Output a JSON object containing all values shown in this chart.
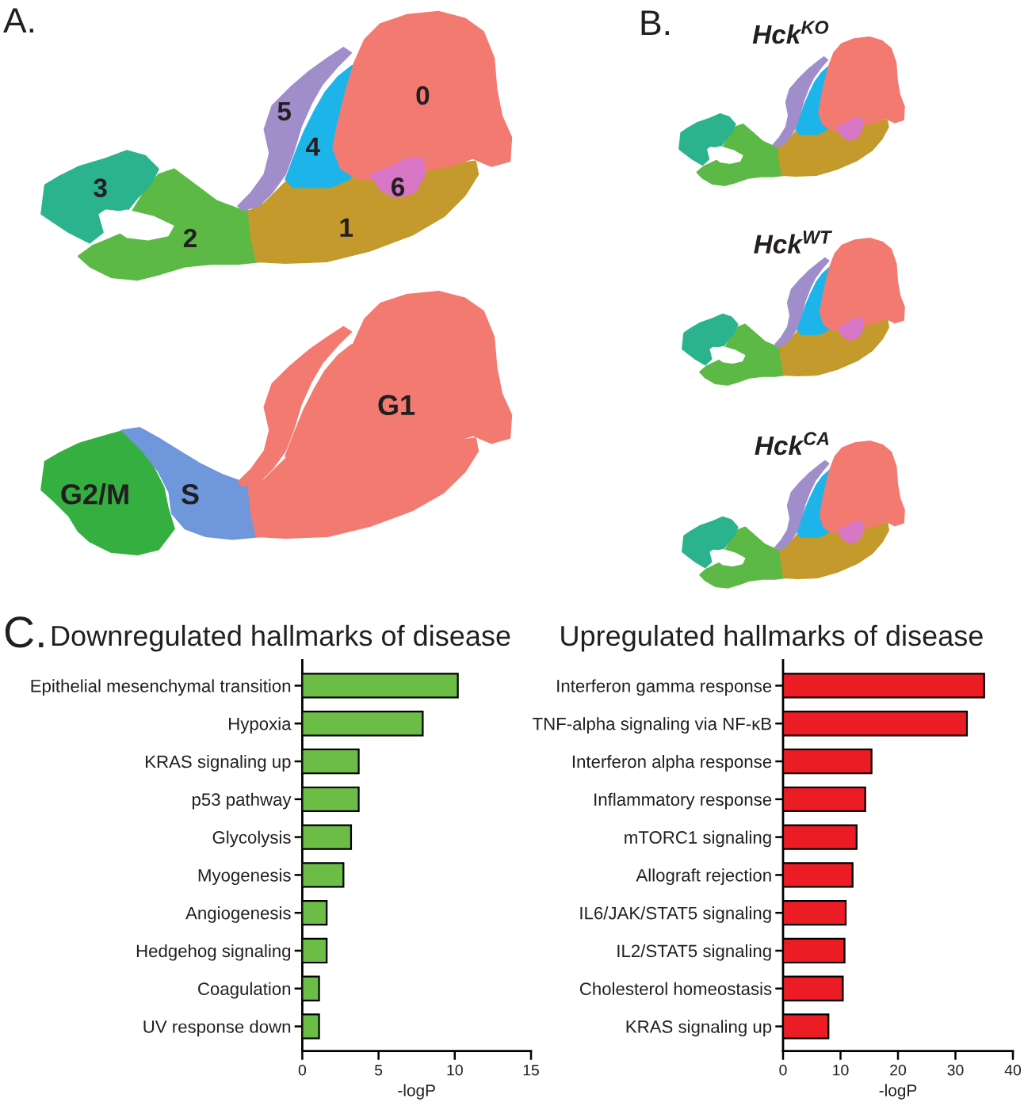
{
  "chart_data": [
    {
      "type": "other",
      "annotations": [
        "A.",
        "0",
        "1",
        "2",
        "3",
        "4",
        "5",
        "6"
      ]
    },
    {
      "type": "other",
      "annotations": [
        "G1",
        "G2/M",
        "S"
      ]
    },
    {
      "type": "other",
      "title": "Hck$^{KO}$",
      "annotations": [
        "B."
      ]
    },
    {
      "type": "other",
      "title": "Hck$^{WT}$"
    },
    {
      "type": "other",
      "title": "Hck$^{CA}$"
    },
    {
      "type": "bar",
      "orientation": "horizontal",
      "title": "Downregulated hallmarks of disease",
      "xlabel": "-logP",
      "categories": [
        "Epithelial mesenchymal transition",
        "Hypoxia",
        "KRAS signaling up",
        "p53 pathway",
        "Glycolysis",
        "Myogenesis",
        "Angiogenesis",
        "Hedgehog signaling",
        "Coagulation",
        "UV response down"
      ],
      "values": [
        10.2,
        7.9,
        3.7,
        3.7,
        3.2,
        2.7,
        1.6,
        1.6,
        1.1,
        1.1
      ],
      "color": "#6cbd45",
      "xlim": [
        0,
        15
      ],
      "xticks": [
        0,
        5,
        10,
        15
      ],
      "annotations": [
        "C."
      ]
    },
    {
      "type": "bar",
      "orientation": "horizontal",
      "title": "Upregulated hallmarks of disease",
      "xlabel": "-logP",
      "categories": [
        "Interferon gamma response",
        "TNF-alpha signaling via NF-κB",
        "Interferon alpha response",
        "Inflammatory response",
        "mTORC1 signaling",
        "Allograft rejection",
        "IL6/JAK/STAT5 signaling",
        "IL2/STAT5 signaling",
        "Cholesterol homeostasis",
        "KRAS signaling up"
      ],
      "values": [
        35.0,
        32.0,
        15.4,
        14.3,
        12.8,
        12.1,
        10.9,
        10.7,
        10.4,
        7.9
      ],
      "color": "#ec1c24",
      "xlim": [
        0,
        40
      ],
      "xticks": [
        0,
        10,
        20,
        30,
        40
      ]
    }
  ]
}
